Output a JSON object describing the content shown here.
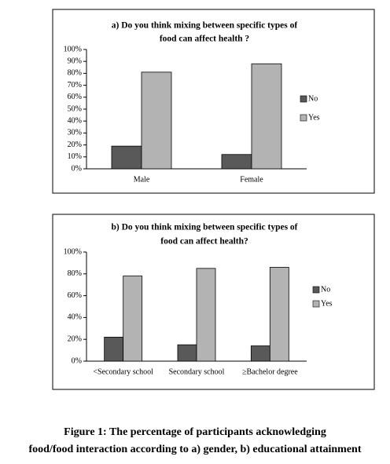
{
  "chart_data": [
    {
      "type": "bar",
      "title": [
        "a) Do you think mixing between  specific types of",
        "food  can affect health ?"
      ],
      "categories": [
        "Male",
        "Female"
      ],
      "series": [
        {
          "name": "No",
          "color": "#595959",
          "values": [
            19,
            12
          ]
        },
        {
          "name": "Yes",
          "color": "#b3b3b3",
          "values": [
            81,
            88
          ]
        }
      ],
      "ylim": [
        0,
        100
      ],
      "yticks": [
        {
          "value": 0,
          "label": "0%"
        },
        {
          "value": 10,
          "label": "10%"
        },
        {
          "value": 20,
          "label": "20%"
        },
        {
          "value": 30,
          "label": "30%"
        },
        {
          "value": 40,
          "label": "40%"
        },
        {
          "value": 50,
          "label": "50%"
        },
        {
          "value": 60,
          "label": "60%"
        },
        {
          "value": 70,
          "label": "70%"
        },
        {
          "value": 80,
          "label": "80%"
        },
        {
          "value": 90,
          "label": "90%"
        },
        {
          "value": 100,
          "label": "100%"
        }
      ],
      "legend": "right"
    },
    {
      "type": "bar",
      "title": [
        "b) Do you think mixing between  specific types of",
        "food  can affect health?"
      ],
      "categories": [
        "<Secondary school",
        "Secondary school",
        "≥Bachelor degree"
      ],
      "series": [
        {
          "name": "No",
          "color": "#595959",
          "values": [
            22,
            15,
            14
          ]
        },
        {
          "name": "Yes",
          "color": "#b3b3b3",
          "values": [
            78,
            85,
            86
          ]
        }
      ],
      "ylim": [
        0,
        100
      ],
      "yticks": [
        {
          "value": 0,
          "label": "0%"
        },
        {
          "value": 20,
          "label": "20%"
        },
        {
          "value": 40,
          "label": "40%"
        },
        {
          "value": 60,
          "label": "60%"
        },
        {
          "value": 80,
          "label": "80%"
        },
        {
          "value": 100,
          "label": "100%"
        }
      ],
      "legend": "right"
    }
  ],
  "caption": [
    "Figure 1: The percentage of participants acknowledging",
    "food/food interaction according to a) gender, b) educational attainment"
  ]
}
